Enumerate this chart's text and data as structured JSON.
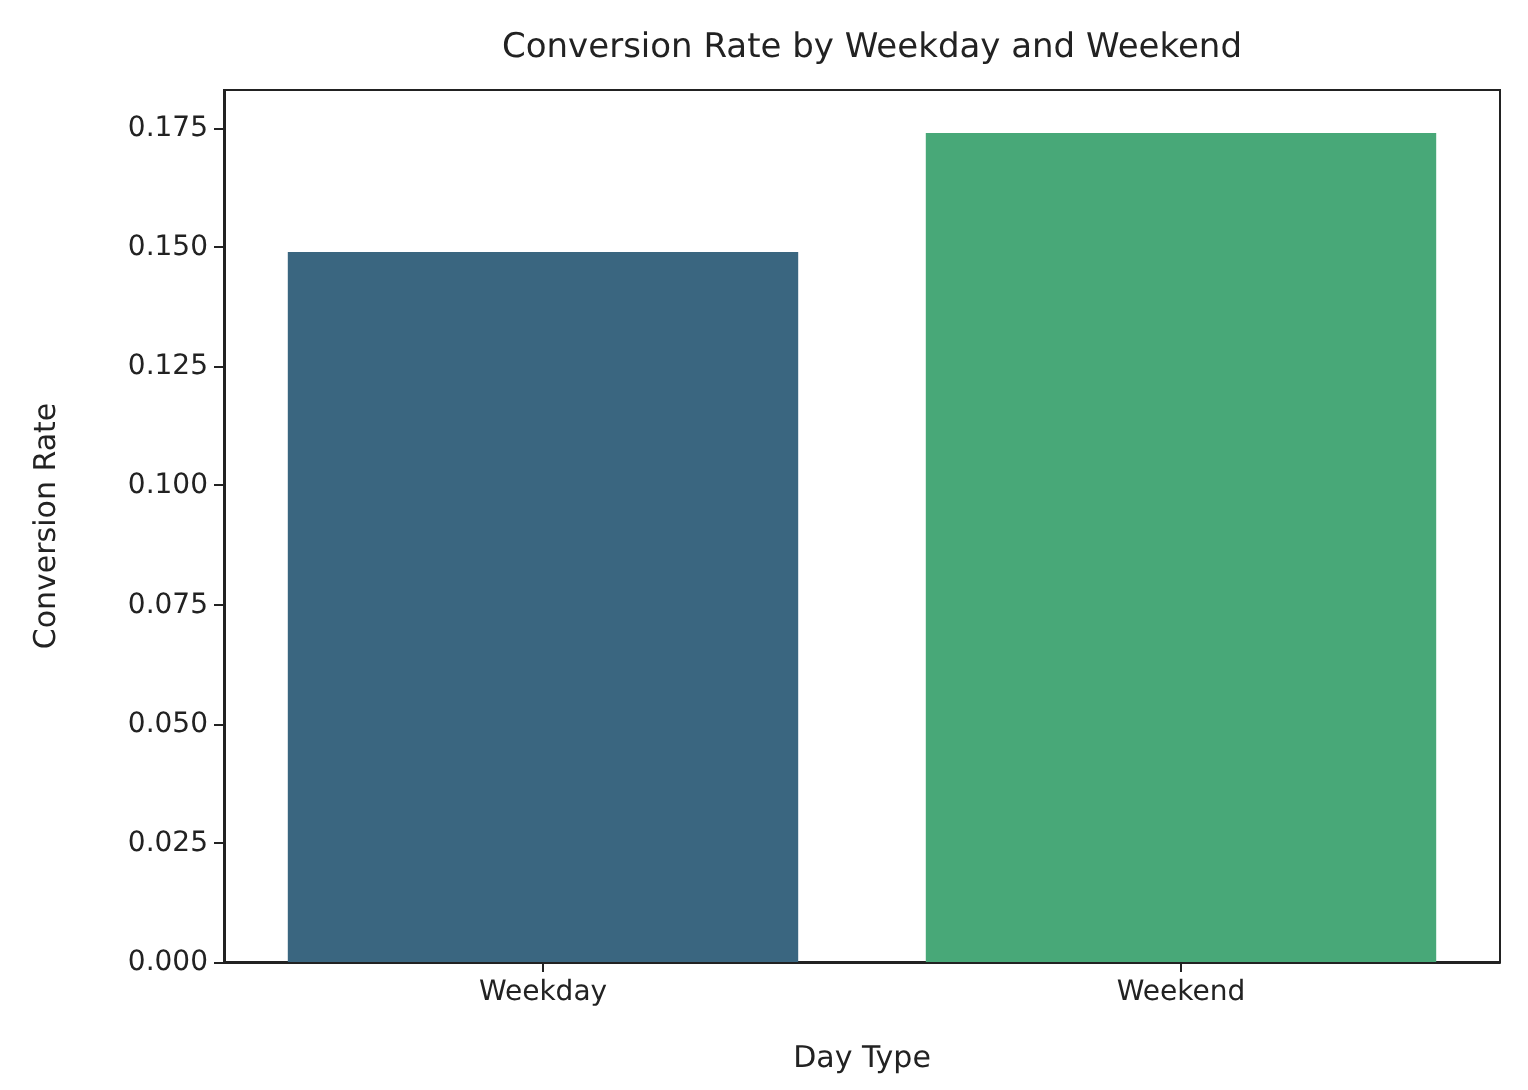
{
  "chart_data": {
    "type": "bar",
    "title": "Conversion Rate by Weekday and Weekend",
    "xlabel": "Day Type",
    "ylabel": "Conversion Rate",
    "categories": [
      "Weekday",
      "Weekend"
    ],
    "values": [
      0.149,
      0.174
    ],
    "colors": [
      "#3a6680",
      "#48a878"
    ],
    "ylim": [
      0,
      0.183
    ],
    "yticks": [
      {
        "value": 0,
        "label": "0.000"
      },
      {
        "value": 0.025,
        "label": "0.025"
      },
      {
        "value": 0.05,
        "label": "0.050"
      },
      {
        "value": 0.075,
        "label": "0.075"
      },
      {
        "value": 0.1,
        "label": "0.100"
      },
      {
        "value": 0.125,
        "label": "0.125"
      },
      {
        "value": 0.15,
        "label": "0.150"
      },
      {
        "value": 0.175,
        "label": "0.175"
      }
    ],
    "grid": false
  }
}
